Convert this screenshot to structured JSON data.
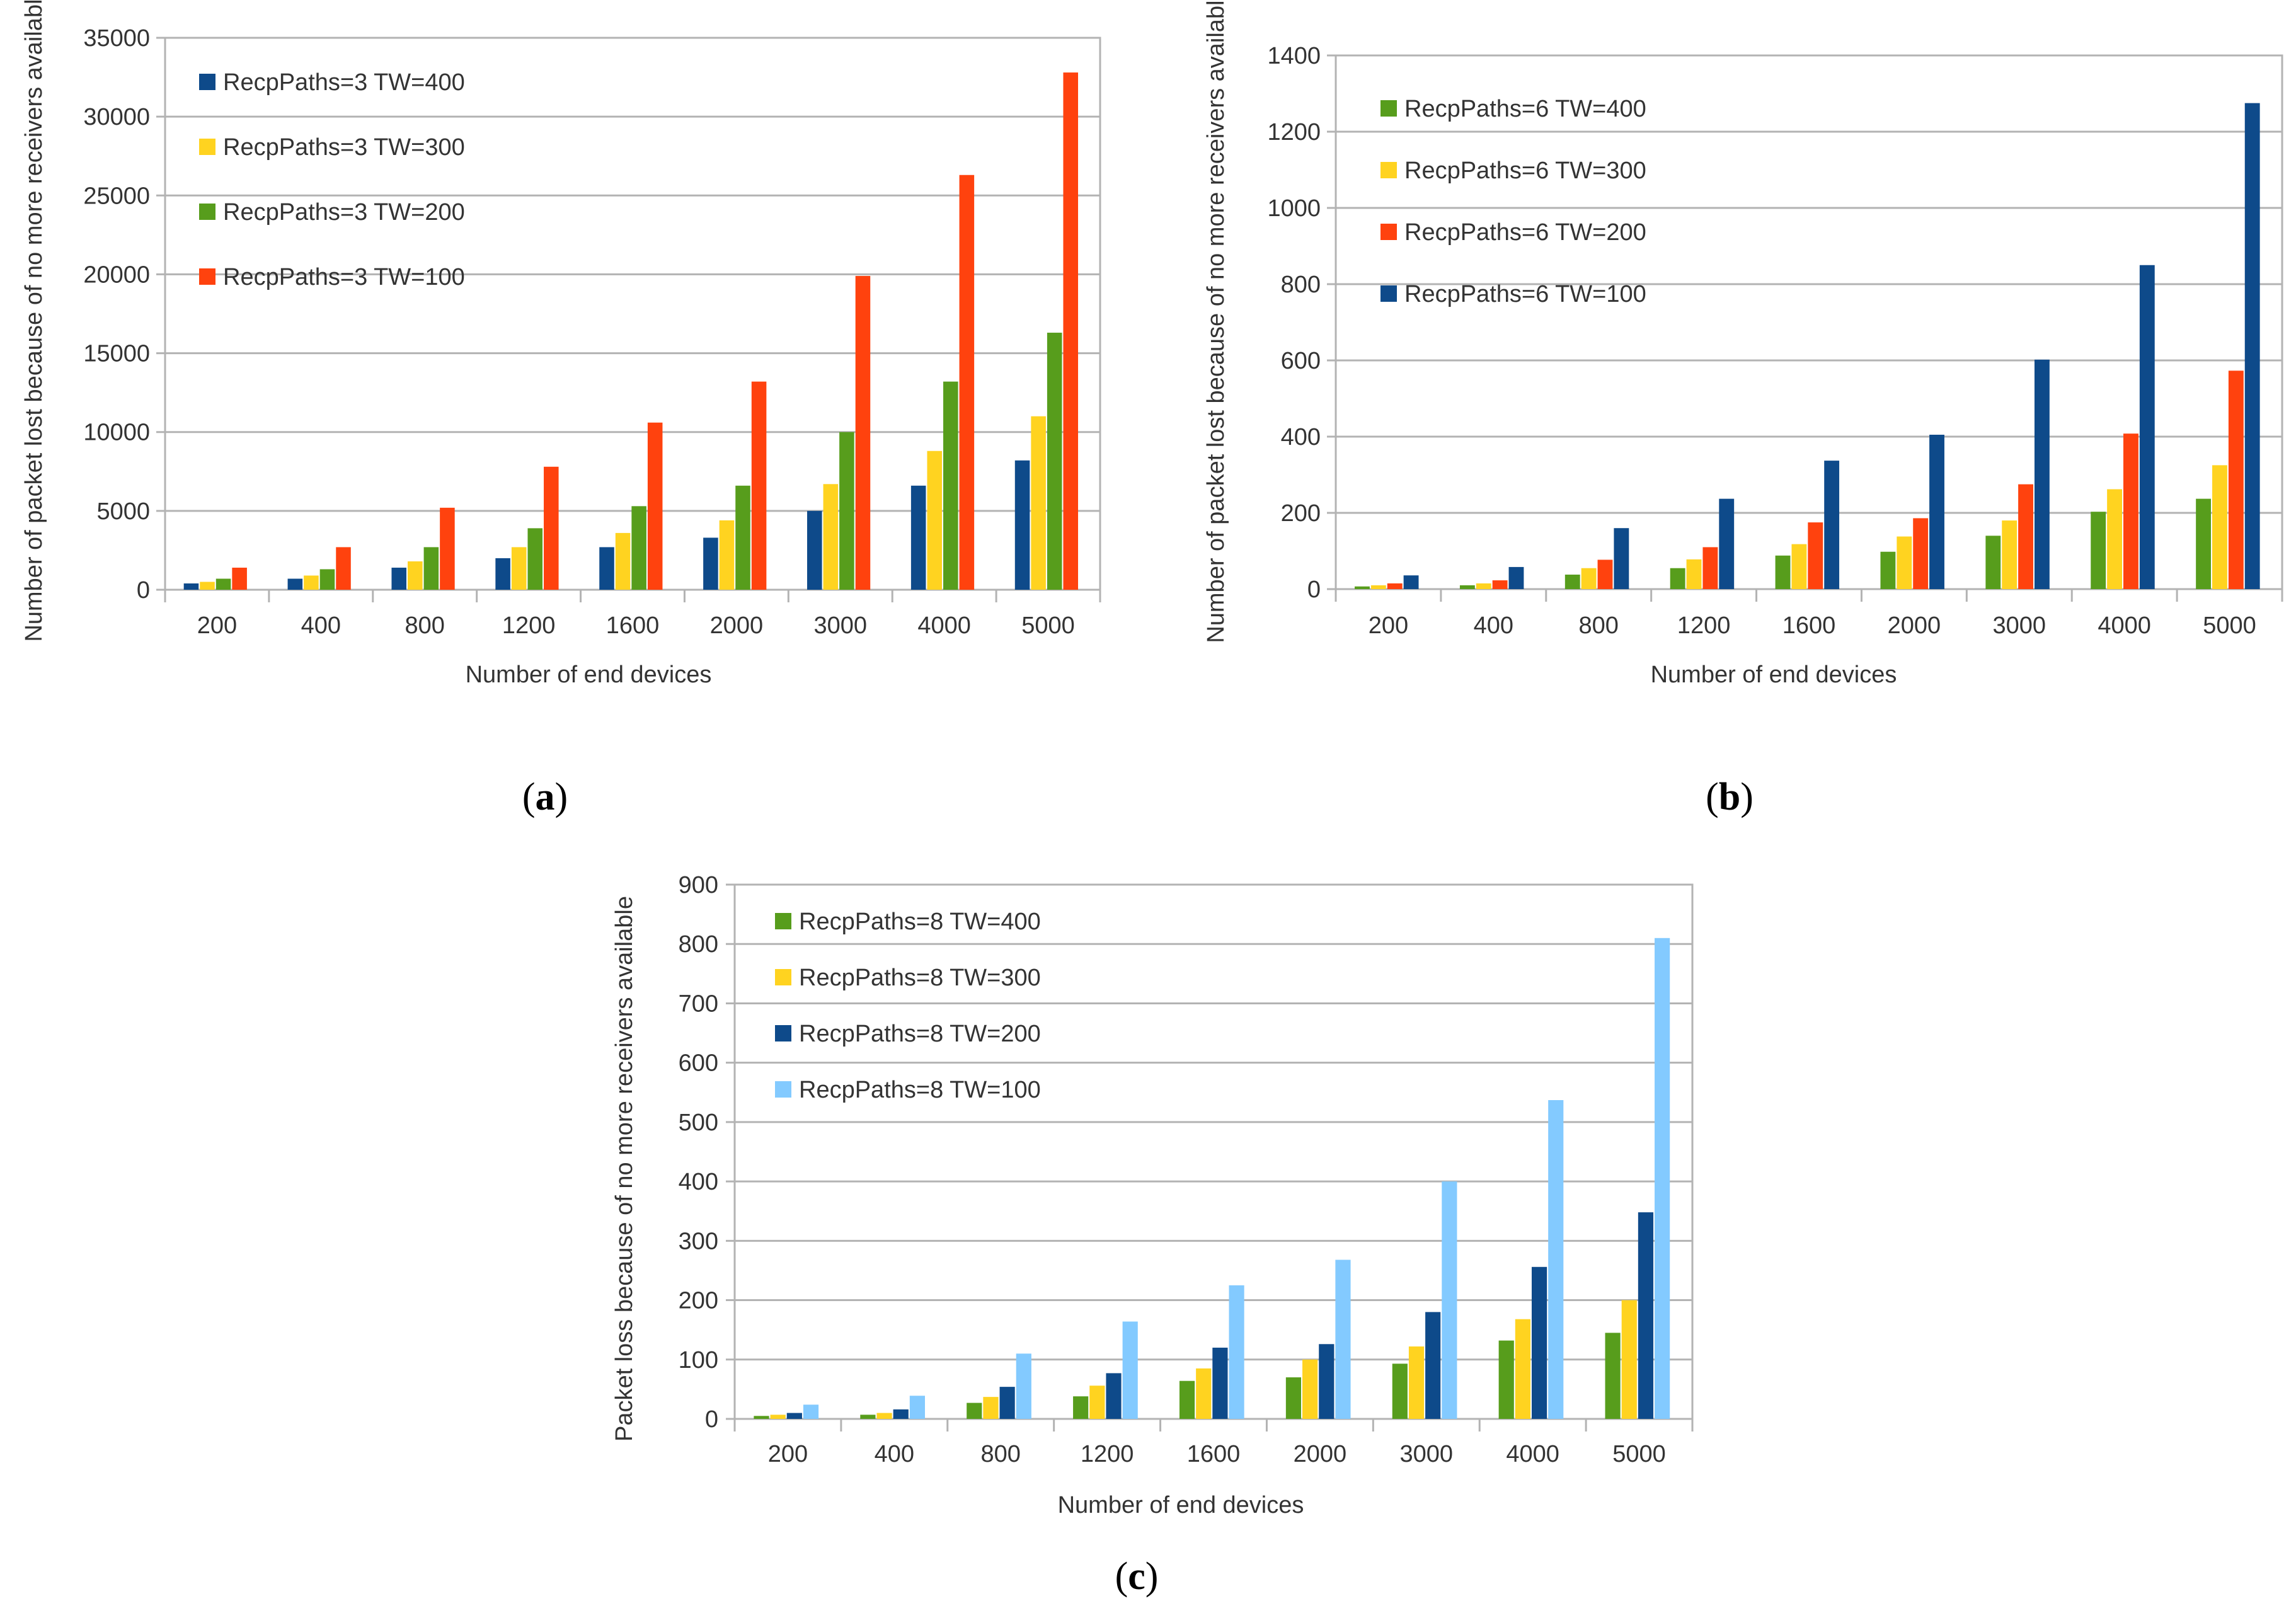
{
  "colors": {
    "navy": "#0e4a8a",
    "yellow": "#ffd320",
    "green": "#579d1c",
    "red": "#ff420e",
    "lightblue": "#83caff",
    "grid": "#b3b3b3",
    "axis": "#b3b3b3"
  },
  "chart_data": [
    {
      "type": "bar",
      "caption_letter": "a",
      "title": "",
      "xlabel": "Number of end devices",
      "ylabel": "Number of packet lost because of no more receivers available",
      "ylim": [
        0,
        35000
      ],
      "yticks": [
        0,
        5000,
        10000,
        15000,
        20000,
        25000,
        30000,
        35000
      ],
      "categories": [
        "200",
        "400",
        "800",
        "1200",
        "1600",
        "2000",
        "3000",
        "4000",
        "5000"
      ],
      "legend_position": "top-left",
      "series": [
        {
          "name": "RecpPaths=3 TW=400",
          "color": "navy",
          "values": [
            400,
            700,
            1400,
            2000,
            2700,
            3300,
            5000,
            6600,
            8200
          ]
        },
        {
          "name": "RecpPaths=3 TW=300",
          "color": "yellow",
          "values": [
            500,
            900,
            1800,
            2700,
            3600,
            4400,
            6700,
            8800,
            11000
          ]
        },
        {
          "name": "RecpPaths=3 TW=200",
          "color": "green",
          "values": [
            700,
            1300,
            2700,
            3900,
            5300,
            6600,
            10000,
            13200,
            16300
          ]
        },
        {
          "name": "RecpPaths=3 TW=100",
          "color": "red",
          "values": [
            1400,
            2700,
            5200,
            7800,
            10600,
            13200,
            19900,
            26300,
            32800
          ]
        }
      ]
    },
    {
      "type": "bar",
      "caption_letter": "b",
      "title": "",
      "xlabel": "Number of end devices",
      "ylabel": "Number of packet lost because of no more receivers available",
      "ylim": [
        0,
        1400
      ],
      "yticks": [
        0,
        200,
        400,
        600,
        800,
        1000,
        1200,
        1400
      ],
      "categories": [
        "200",
        "400",
        "800",
        "1200",
        "1600",
        "2000",
        "3000",
        "4000",
        "5000"
      ],
      "legend_position": "top-left",
      "series": [
        {
          "name": "RecpPaths=6 TW=400",
          "color": "green",
          "values": [
            7,
            10,
            38,
            55,
            88,
            98,
            140,
            203,
            237
          ]
        },
        {
          "name": "RecpPaths=6 TW=300",
          "color": "yellow",
          "values": [
            10,
            15,
            55,
            78,
            118,
            138,
            180,
            262,
            325
          ]
        },
        {
          "name": "RecpPaths=6 TW=200",
          "color": "red",
          "values": [
            15,
            23,
            77,
            110,
            175,
            186,
            275,
            408,
            573
          ]
        },
        {
          "name": "RecpPaths=6 TW=100",
          "color": "navy",
          "values": [
            36,
            58,
            160,
            237,
            337,
            405,
            602,
            850,
            1275
          ]
        }
      ]
    },
    {
      "type": "bar",
      "caption_letter": "c",
      "title": "",
      "xlabel": "Number of end devices",
      "ylabel": "Packet loss  because of no more receivers available",
      "ylim": [
        0,
        900
      ],
      "yticks": [
        0,
        100,
        200,
        300,
        400,
        500,
        600,
        700,
        800,
        900
      ],
      "categories": [
        "200",
        "400",
        "800",
        "1200",
        "1600",
        "2000",
        "3000",
        "4000",
        "5000"
      ],
      "legend_position": "top-left",
      "series": [
        {
          "name": "RecpPaths=8 TW=400",
          "color": "green",
          "values": [
            5,
            7,
            27,
            38,
            64,
            70,
            93,
            132,
            145
          ]
        },
        {
          "name": "RecpPaths=8 TW=300",
          "color": "yellow",
          "values": [
            7,
            10,
            37,
            56,
            85,
            100,
            122,
            168,
            200
          ]
        },
        {
          "name": "RecpPaths=8 TW=200",
          "color": "navy",
          "values": [
            10,
            16,
            54,
            77,
            120,
            126,
            180,
            256,
            348
          ]
        },
        {
          "name": "RecpPaths=8 TW=100",
          "color": "lightblue",
          "values": [
            24,
            39,
            110,
            164,
            225,
            268,
            400,
            537,
            810
          ]
        }
      ]
    }
  ]
}
